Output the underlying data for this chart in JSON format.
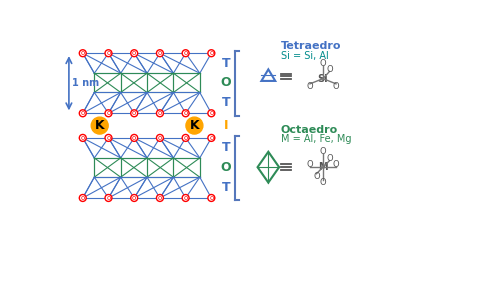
{
  "bg_color": "#ffffff",
  "blue_color": "#4472C4",
  "green_color": "#2E8B57",
  "red_color": "#FF0000",
  "orange_color": "#FFA500",
  "teal_color": "#008B8B",
  "label_T_color": "#4472C4",
  "label_O_color": "#2E8B57",
  "label_I_color": "#FFA500",
  "tetraedro_title": "Tetraedro",
  "tetraedro_subtitle": "Si = Si, Al",
  "octaedro_title": "Octaedro",
  "octaedro_subtitle": "M = Al, Fe, Mg",
  "nm_label": "1 nm",
  "K_label": "K"
}
